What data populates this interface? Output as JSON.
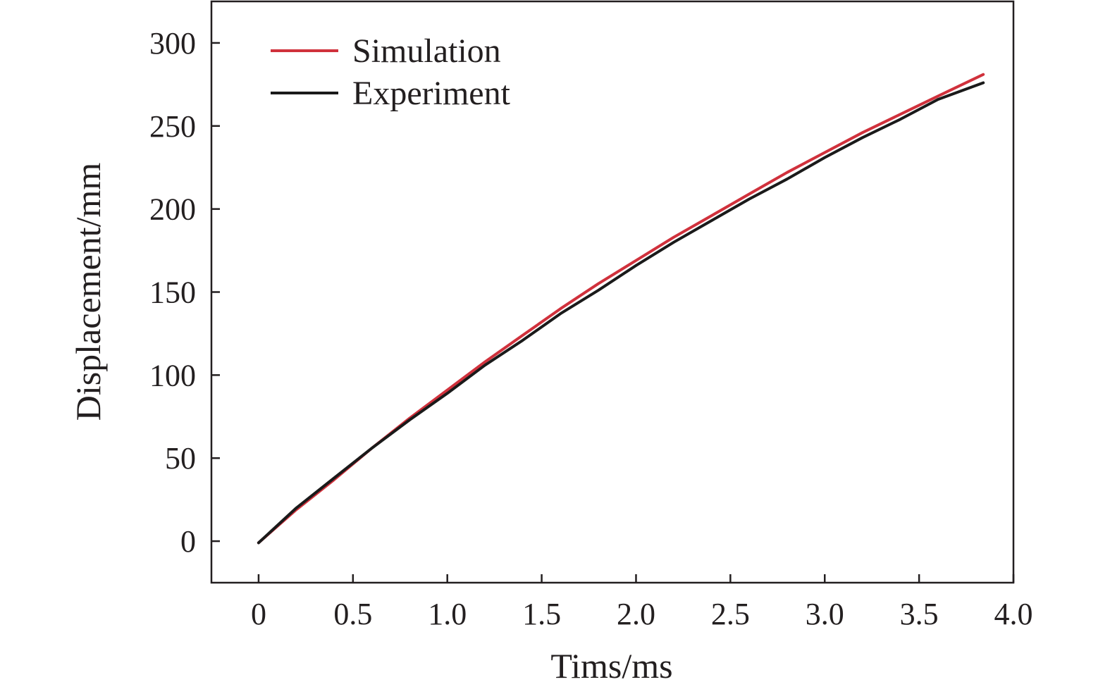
{
  "chart_data": {
    "type": "line",
    "title": "",
    "xlabel": "Tims/ms",
    "ylabel": "Displacement/mm",
    "xlim": [
      -0.25,
      4.0
    ],
    "ylim": [
      -25,
      325
    ],
    "xticks": [
      0,
      0.5,
      1.0,
      1.5,
      2.0,
      2.5,
      3.0,
      3.5,
      4.0
    ],
    "xtick_labels": [
      "0",
      "0.5",
      "1.0",
      "1.5",
      "2.0",
      "2.5",
      "3.0",
      "3.5",
      "4.0"
    ],
    "yticks": [
      0,
      50,
      100,
      150,
      200,
      250,
      300
    ],
    "ytick_labels": [
      "0",
      "50",
      "100",
      "150",
      "200",
      "250",
      "300"
    ],
    "grid": false,
    "legend_position": "top-left",
    "series": [
      {
        "name": "Simulation",
        "color": "#d0313c",
        "x": [
          0,
          0.2,
          0.4,
          0.6,
          0.8,
          1.0,
          1.2,
          1.4,
          1.6,
          1.8,
          2.0,
          2.2,
          2.4,
          2.6,
          2.8,
          3.0,
          3.2,
          3.4,
          3.6,
          3.84
        ],
        "y": [
          -1,
          19,
          37,
          56,
          74,
          91,
          108,
          124,
          140,
          155,
          169,
          183,
          196,
          209,
          222,
          234,
          246,
          257,
          268,
          281
        ]
      },
      {
        "name": "Experiment",
        "color": "#1a1a1a",
        "x": [
          0,
          0.2,
          0.4,
          0.6,
          0.8,
          1.0,
          1.2,
          1.4,
          1.6,
          1.8,
          2.0,
          2.2,
          2.4,
          2.6,
          2.8,
          3.0,
          3.2,
          3.4,
          3.6,
          3.84
        ],
        "y": [
          -1,
          20,
          38,
          56,
          73,
          89,
          106,
          121,
          137,
          151,
          166,
          180,
          193,
          206,
          218,
          231,
          243,
          254,
          266,
          276
        ]
      }
    ]
  }
}
